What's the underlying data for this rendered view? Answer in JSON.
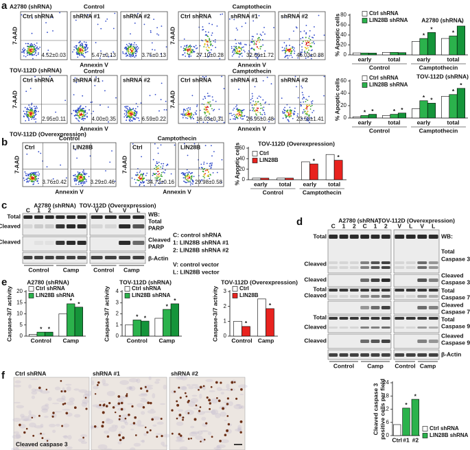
{
  "panels": {
    "a": {
      "letter": "a",
      "rows": [
        {
          "title": "A2780 (shRNA)",
          "y_label": "7-AAD",
          "x_label": "Annexin V",
          "groups": [
            {
              "title": "Control",
              "plots": [
                {
                  "label": "Ctrl shRNA",
                  "value": "4.52±0.03"
                },
                {
                  "label": "shRNA #1",
                  "value": "5.47±0.13"
                },
                {
                  "label": "shRNA #2",
                  "value": "3.75±0.13"
                }
              ]
            },
            {
              "title": "Camptothecin",
              "plots": [
                {
                  "label": "Ctrl shRNA",
                  "value": "27.10±0.28"
                },
                {
                  "label": "shRNA #1",
                  "value": "32.66±1.72"
                },
                {
                  "label": "shRNA #2",
                  "value": "46.03±0.88"
                }
              ]
            }
          ]
        },
        {
          "title": "TOV-112D (shRNA)",
          "y_label": "7-AAD",
          "x_label": "Annexin V",
          "groups": [
            {
              "title": "Control",
              "plots": [
                {
                  "label": "Ctrl shRNA",
                  "value": "2.95±0.11"
                },
                {
                  "label": "shRNA #1",
                  "value": "4.00±0.35"
                },
                {
                  "label": "shRNA #2",
                  "value": "6.59±0.22"
                }
              ]
            },
            {
              "title": "Camptothecin",
              "plots": [
                {
                  "label": "Ctrl shRNA",
                  "value": "16.03±0.31"
                },
                {
                  "label": "shRNA #1",
                  "value": "26.95±0.48"
                },
                {
                  "label": "shRNA #2",
                  "value": "23.53±1.41"
                }
              ]
            }
          ]
        }
      ]
    },
    "b": {
      "letter": "b",
      "row": {
        "title": "TOV-112D (Overexpression)",
        "y_label": "7-AAD",
        "x_label": "Annexin V",
        "groups": [
          {
            "title": "Control",
            "plots": [
              {
                "label": "Ctrl",
                "value": "3.76±0.42"
              },
              {
                "label": "LIN28B",
                "value": "3.29±0.46"
              }
            ]
          },
          {
            "title": "Camptothecin",
            "plots": [
              {
                "label": "Ctrl",
                "value": "34.72±0.16"
              },
              {
                "label": "LIN28B",
                "value": "29.98±0.58"
              }
            ]
          }
        ]
      }
    },
    "c": {
      "letter": "c",
      "blots": [
        {
          "title": "A2780 (shRNA)",
          "lanes": [
            "C",
            "1",
            "2"
          ],
          "groups": [
            "Control",
            "Camp"
          ]
        },
        {
          "title": "TOV-112D (Overexpression)",
          "lanes": [
            "V",
            "L",
            "V",
            "L"
          ],
          "groups": [
            "Control",
            "Camp"
          ]
        }
      ],
      "left_labels": [
        "Total",
        "Cleaved",
        "Cleaved"
      ],
      "right_labels": [
        "WB:",
        "Total",
        "PARP",
        "Cleaved",
        "PARP",
        "β-Actin"
      ],
      "key": [
        "C: control shRNA",
        "1: LIN28B shRNA #1",
        "2: LIN28B shRNA #2",
        "V: control vector",
        "L: LIN28B vector"
      ]
    },
    "d": {
      "letter": "d",
      "blots": [
        {
          "title": "A2780 (shRNA)",
          "lanes": [
            "C",
            "1",
            "2",
            "C",
            "1",
            "2"
          ],
          "groups": [
            "Control",
            "Camp"
          ]
        },
        {
          "title": "TOV-112D (Overexpression)",
          "lanes": [
            "V",
            "L",
            "V",
            "L"
          ],
          "groups": [
            "Control",
            "Camp"
          ]
        }
      ],
      "left_labels": [
        "Total",
        "Cleaved",
        "Cleaved",
        "Total",
        "Cleaved",
        "Total",
        "Cleaved",
        "Cleaved"
      ],
      "right_labels": [
        "WB:",
        "Total",
        "Caspase 3",
        "Cleaved",
        "Caspase 3",
        "Total",
        "Caspase 7",
        "Cleaved",
        "Caspase 7",
        "Total",
        "Caspase 9",
        "Cleaved",
        "Caspase 9",
        "β-Actin"
      ]
    },
    "e": {
      "letter": "e"
    },
    "f": {
      "letter": "f",
      "images": [
        "Ctrl shRNA",
        "shRNA #1",
        "shRNA #2"
      ],
      "stain_label": "Cleaved caspase 3"
    }
  },
  "chart_data": [
    {
      "type": "bar",
      "title": "A2780 (shRNA)",
      "y_label": "% Apoptic cells",
      "categories": [
        "early",
        "total",
        "early",
        "total"
      ],
      "groups": [
        "Control",
        "Camptothecin"
      ],
      "series": [
        {
          "name": "Ctrl shRNA",
          "color": "#ffffff",
          "values": [
            4,
            5,
            27,
            33
          ]
        },
        {
          "name": "LIN28B shRNA",
          "color": "#2bb24c",
          "values": [
            3.8,
            5,
            33,
            38
          ],
          "stars": [
            false,
            false,
            true,
            true
          ]
        },
        {
          "color": "#15943a",
          "values": [
            3.6,
            4.5,
            45,
            58
          ],
          "stars": [
            false,
            false,
            true,
            true
          ]
        }
      ],
      "ylim": [
        0,
        80
      ],
      "yticks": [
        0,
        20,
        40,
        60,
        80
      ],
      "star": "*",
      "legend": "upper left",
      "grid": false
    },
    {
      "type": "bar",
      "title": "TOV-112D (shRNA)",
      "y_label": "% Apoptic cells",
      "categories": [
        "early",
        "total",
        "early",
        "total"
      ],
      "groups": [
        "Control",
        "Camptothecin"
      ],
      "series": [
        {
          "name": "Ctrl shRNA",
          "color": "#ffffff",
          "values": [
            2,
            4,
            15,
            35
          ]
        },
        {
          "name": "LIN28B shRNA",
          "color": "#2bb24c",
          "values": [
            4,
            6,
            28,
            38
          ],
          "stars": [
            true,
            true,
            true,
            true
          ]
        },
        {
          "color": "#15943a",
          "values": [
            6,
            8,
            24,
            48
          ],
          "stars": [
            true,
            true,
            true,
            true
          ]
        }
      ],
      "ylim": [
        0,
        60
      ],
      "yticks": [
        0,
        20,
        40,
        60
      ],
      "star": "*",
      "legend": "upper left",
      "grid": false
    },
    {
      "type": "bar",
      "title": "TOV-112D (Overexpression)",
      "y_label": "% Apoptic cells",
      "categories": [
        "early",
        "total",
        "early",
        "total"
      ],
      "groups": [
        "Control",
        "Camptothecin"
      ],
      "series": [
        {
          "name": "Ctrl",
          "color": "#ffffff",
          "values": [
            3,
            3,
            34,
            48
          ]
        },
        {
          "name": "LIN28B",
          "color": "#e8231f",
          "values": [
            3,
            3,
            30,
            37
          ],
          "stars": [
            false,
            false,
            true,
            true
          ]
        }
      ],
      "ylim": [
        0,
        60
      ],
      "yticks": [
        0,
        20,
        40,
        60
      ],
      "star": "*",
      "legend": "upper left",
      "grid": false
    },
    {
      "type": "bar",
      "title": "A2780 (shRNA)",
      "y_label": "Caspase-3/7 activity",
      "categories": [
        "Control",
        "Camp"
      ],
      "series": [
        {
          "name": "Ctrl shRNA",
          "color": "#ffffff",
          "values": [
            0.8,
            10
          ]
        },
        {
          "name": "LIN28B shRNA",
          "color": "#2bb24c",
          "values": [
            1.8,
            14.5
          ],
          "stars": [
            true,
            true
          ]
        },
        {
          "color": "#15943a",
          "values": [
            1.8,
            13
          ],
          "stars": [
            true,
            true
          ]
        }
      ],
      "ylim": [
        0,
        20
      ],
      "yticks": [
        0,
        5,
        10,
        15,
        20
      ],
      "star": "*",
      "legend": "upper left",
      "grid": false
    },
    {
      "type": "bar",
      "title": "TOV-112D (shRNA)",
      "y_label": "Caspase-3/7 activity",
      "categories": [
        "Control",
        "Camp"
      ],
      "series": [
        {
          "name": "Ctrl shRNA",
          "color": "#ffffff",
          "values": [
            1,
            1.6
          ]
        },
        {
          "name": "LIN28B shRNA",
          "color": "#2bb24c",
          "values": [
            1.45,
            2.4
          ],
          "stars": [
            true,
            true
          ]
        },
        {
          "color": "#15943a",
          "values": [
            1.35,
            2.9
          ],
          "stars": [
            true,
            true
          ]
        }
      ],
      "ylim": [
        0,
        4
      ],
      "yticks": [
        0,
        1,
        2,
        3,
        4
      ],
      "star": "*",
      "legend": "upper left",
      "grid": false
    },
    {
      "type": "bar",
      "title": "TOV-112D (Overexpression)",
      "y_label": "Caspase-3/7 activity",
      "categories": [
        "Control",
        "Camp"
      ],
      "series": [
        {
          "name": "Ctrl",
          "color": "#ffffff",
          "values": [
            1,
            2.5
          ]
        },
        {
          "name": "LIN28B",
          "color": "#e8231f",
          "values": [
            0.65,
            1.85
          ],
          "stars": [
            true,
            true
          ]
        }
      ],
      "ylim": [
        0,
        3
      ],
      "yticks": [
        0,
        1,
        2,
        3
      ],
      "star": "*",
      "legend": "upper left",
      "grid": false
    },
    {
      "type": "bar",
      "y_label": [
        "Cleaved caspase 3",
        "positive cells per field"
      ],
      "categories": [
        "Ctrl",
        "#1",
        "#2"
      ],
      "series": [
        {
          "name": "Ctrl shRNA",
          "color": "#ffffff",
          "values": [
            5,
            null,
            null
          ]
        },
        {
          "name": "LIN28B shRNA",
          "color": "#2bb24c",
          "values": [
            null,
            12.5,
            16.5
          ],
          "stars": [
            false,
            true,
            true
          ]
        }
      ],
      "ylim": [
        0,
        24
      ],
      "yticks": [
        0,
        6,
        12,
        18,
        24
      ],
      "star": "*",
      "legend": "lower right",
      "grid": false
    }
  ]
}
